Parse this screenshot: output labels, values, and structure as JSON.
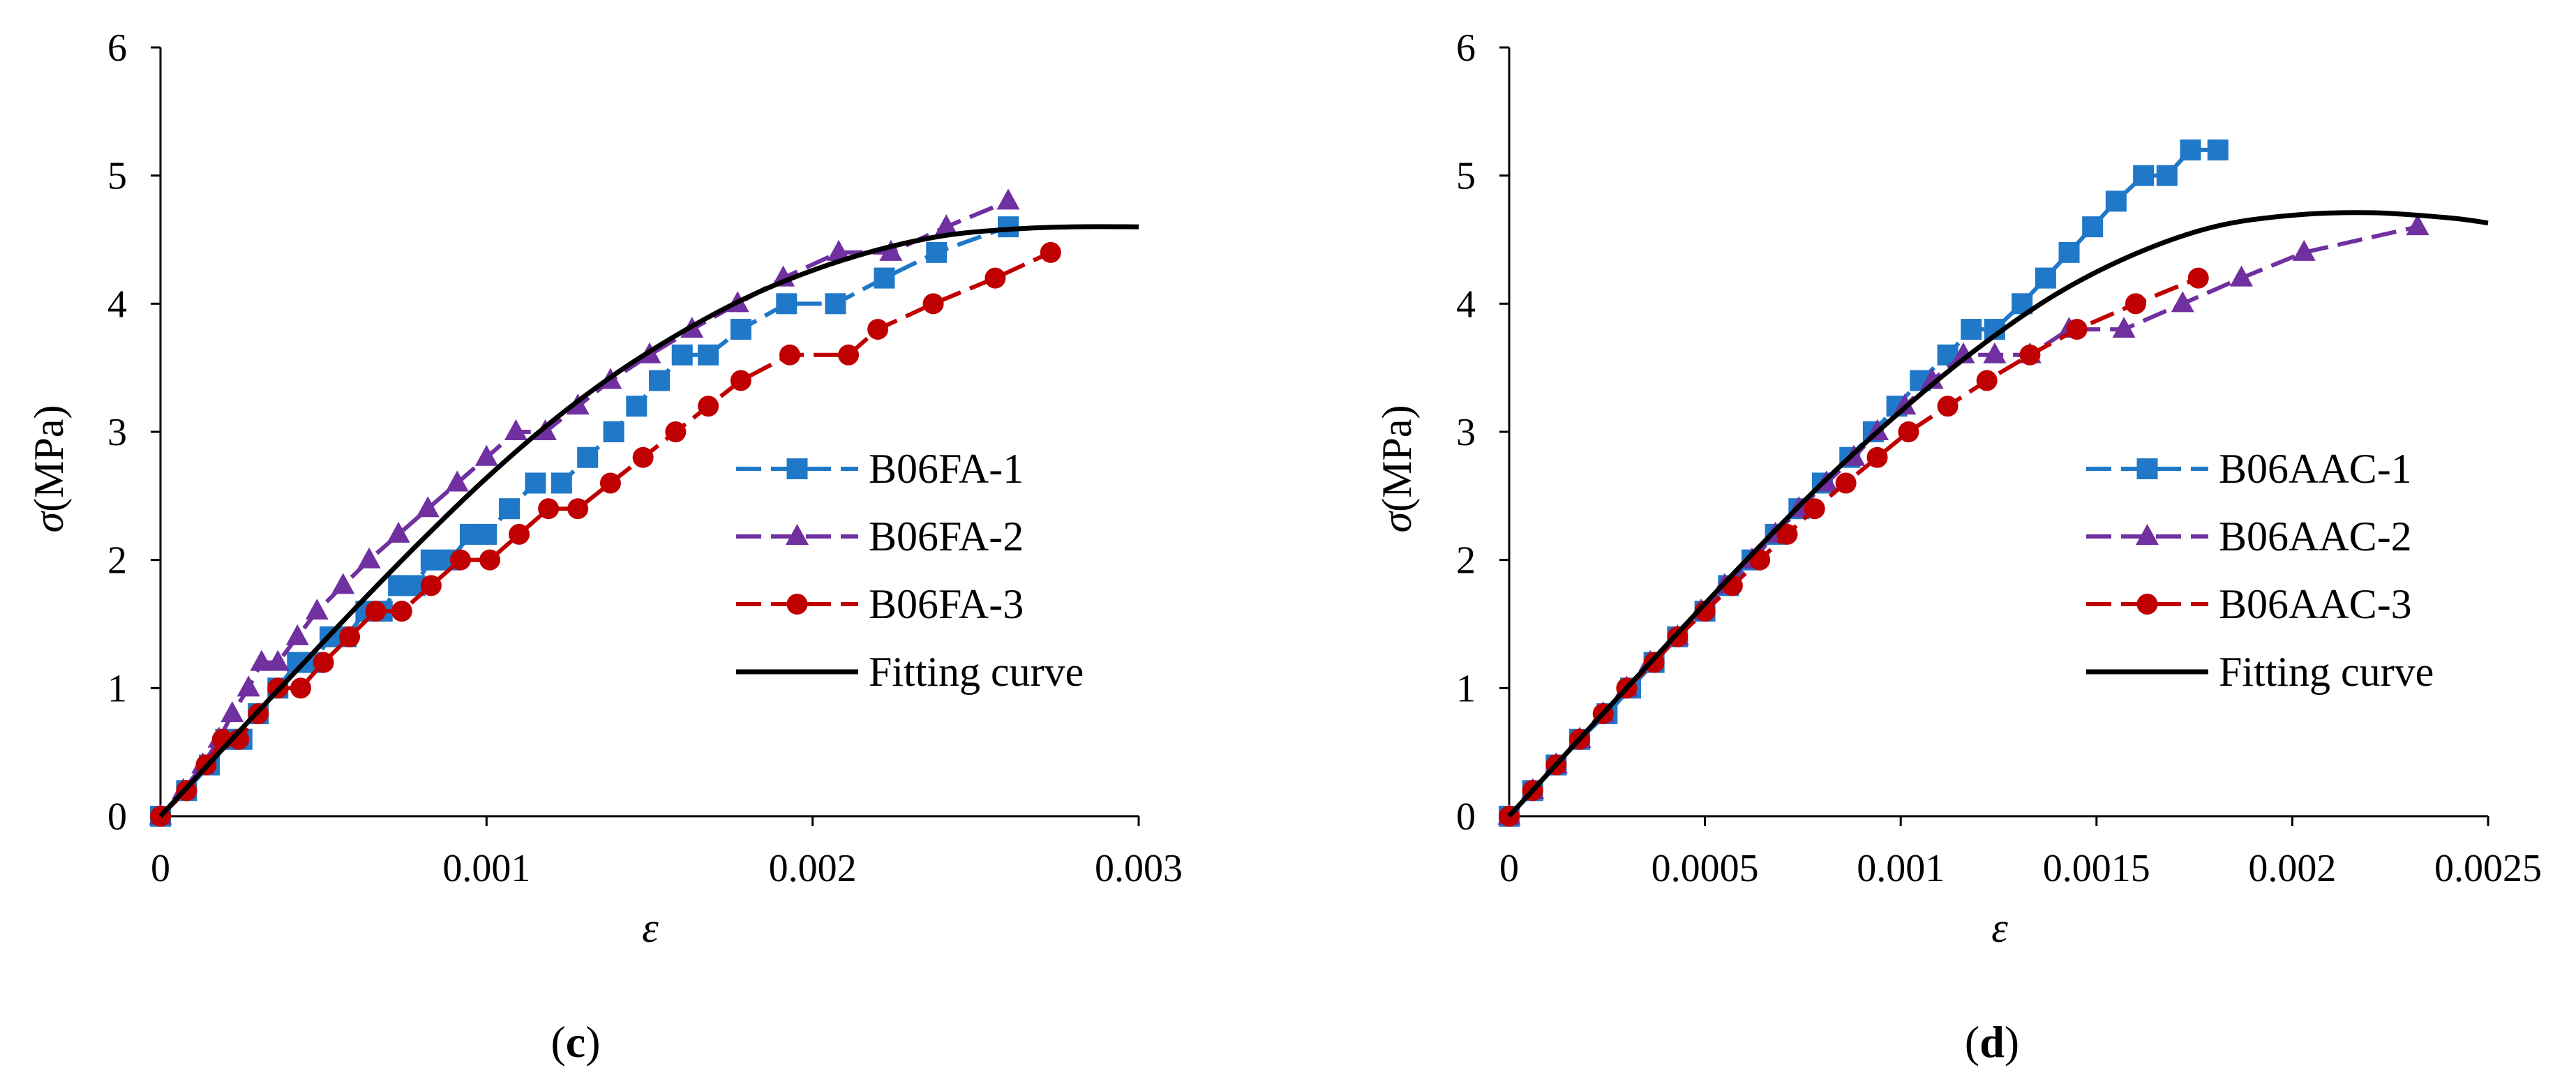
{
  "chart_data": [
    {
      "type": "line",
      "panel_label": "c",
      "xlabel": "ε",
      "ylabel_symbol": "σ",
      "ylabel_unit": "(MPa)",
      "xlim": [
        0,
        0.003
      ],
      "ylim": [
        0,
        6
      ],
      "x_ticks": [
        0,
        0.001,
        0.002,
        0.003
      ],
      "x_tick_labels": [
        "0",
        "0.001",
        "0.002",
        "0.003"
      ],
      "y_ticks": [
        0,
        1,
        2,
        3,
        4,
        5,
        6
      ],
      "y_tick_labels": [
        "0",
        "1",
        "2",
        "3",
        "4",
        "5",
        "6"
      ],
      "legend_position": "right-center",
      "series": [
        {
          "name": "B06FA-1",
          "color": "#1f78c8",
          "marker": "square",
          "dash": "dashed",
          "x": [
            0,
            8e-05,
            0.00015,
            0.0002,
            0.00025,
            0.0003,
            0.00036,
            0.00042,
            0.00047,
            0.00052,
            0.00057,
            0.00063,
            0.00068,
            0.00073,
            0.00078,
            0.00083,
            0.00089,
            0.00095,
            0.001,
            0.00107,
            0.00115,
            0.00123,
            0.00131,
            0.00139,
            0.00146,
            0.00153,
            0.0016,
            0.00168,
            0.00178,
            0.00192,
            0.00207,
            0.00222,
            0.00238,
            0.0026
          ],
          "y": [
            0,
            0.2,
            0.4,
            0.6,
            0.6,
            0.8,
            1.0,
            1.2,
            1.2,
            1.4,
            1.4,
            1.6,
            1.6,
            1.8,
            1.8,
            2.0,
            2.0,
            2.2,
            2.2,
            2.4,
            2.6,
            2.6,
            2.8,
            3.0,
            3.2,
            3.4,
            3.6,
            3.6,
            3.8,
            4.0,
            4.0,
            4.2,
            4.4,
            4.6
          ]
        },
        {
          "name": "B06FA-2",
          "color": "#7030a0",
          "marker": "triangle",
          "dash": "dashed",
          "x": [
            0,
            7e-05,
            0.00013,
            0.00018,
            0.00022,
            0.00027,
            0.00031,
            0.00036,
            0.00042,
            0.00048,
            0.00056,
            0.00064,
            0.00073,
            0.00082,
            0.00091,
            0.001,
            0.00109,
            0.00118,
            0.00128,
            0.00138,
            0.0015,
            0.00163,
            0.00177,
            0.00191,
            0.00208,
            0.00224,
            0.00241,
            0.0026
          ],
          "y": [
            0,
            0.2,
            0.4,
            0.6,
            0.8,
            1.0,
            1.2,
            1.2,
            1.4,
            1.6,
            1.8,
            2.0,
            2.2,
            2.4,
            2.6,
            2.8,
            3.0,
            3.0,
            3.2,
            3.4,
            3.6,
            3.8,
            4.0,
            4.2,
            4.4,
            4.4,
            4.6,
            4.8
          ]
        },
        {
          "name": "B06FA-3",
          "color": "#c00000",
          "marker": "circle",
          "dash": "dashed",
          "x": [
            0,
            8e-05,
            0.00014,
            0.00019,
            0.00024,
            0.0003,
            0.00036,
            0.00043,
            0.0005,
            0.00058,
            0.00066,
            0.00074,
            0.00083,
            0.00092,
            0.00101,
            0.0011,
            0.00119,
            0.00128,
            0.00138,
            0.00148,
            0.00158,
            0.00168,
            0.00178,
            0.00193,
            0.00211,
            0.0022,
            0.00237,
            0.00256,
            0.00273
          ],
          "y": [
            0,
            0.2,
            0.4,
            0.6,
            0.6,
            0.8,
            1.0,
            1.0,
            1.2,
            1.4,
            1.6,
            1.6,
            1.8,
            2.0,
            2.0,
            2.2,
            2.4,
            2.4,
            2.6,
            2.8,
            3.0,
            3.2,
            3.4,
            3.6,
            3.6,
            3.8,
            4.0,
            4.2,
            4.4
          ]
        },
        {
          "name": "Fitting curve",
          "color": "#000000",
          "marker": "none",
          "dash": "solid",
          "x": [
            0,
            0.0002,
            0.0004,
            0.0006,
            0.0008,
            0.001,
            0.0012,
            0.0014,
            0.0016,
            0.0018,
            0.002,
            0.0022,
            0.0024,
            0.0026,
            0.0028,
            0.003
          ],
          "y": [
            0,
            0.55,
            1.09,
            1.63,
            2.15,
            2.64,
            3.08,
            3.46,
            3.78,
            4.05,
            4.26,
            4.42,
            4.53,
            4.58,
            4.6,
            4.6
          ]
        }
      ]
    },
    {
      "type": "line",
      "panel_label": "d",
      "xlabel": "ε",
      "ylabel_symbol": "σ",
      "ylabel_unit": "(MPa)",
      "xlim": [
        0,
        0.0025
      ],
      "ylim": [
        0,
        6
      ],
      "x_ticks": [
        0,
        0.0005,
        0.001,
        0.0015,
        0.002,
        0.0025
      ],
      "x_tick_labels": [
        "0",
        "0.0005",
        "0.001",
        "0.0015",
        "0.002",
        "0.0025"
      ],
      "y_ticks": [
        0,
        1,
        2,
        3,
        4,
        5,
        6
      ],
      "y_tick_labels": [
        "0",
        "1",
        "2",
        "3",
        "4",
        "5",
        "6"
      ],
      "legend_position": "right-center",
      "series": [
        {
          "name": "B06AAC-1",
          "color": "#1f78c8",
          "marker": "square",
          "dash": "dashed",
          "x": [
            0,
            6e-05,
            0.00012,
            0.00018,
            0.00025,
            0.00031,
            0.00037,
            0.00043,
            0.0005,
            0.00056,
            0.00062,
            0.00068,
            0.00074,
            0.0008,
            0.00087,
            0.00093,
            0.00099,
            0.00105,
            0.00112,
            0.00118,
            0.00124,
            0.00131,
            0.00137,
            0.00143,
            0.00149,
            0.00155,
            0.00162,
            0.00168,
            0.00174,
            0.00181
          ],
          "y": [
            0,
            0.2,
            0.4,
            0.6,
            0.8,
            1.0,
            1.2,
            1.4,
            1.6,
            1.8,
            2.0,
            2.2,
            2.4,
            2.6,
            2.8,
            3.0,
            3.2,
            3.4,
            3.6,
            3.8,
            3.8,
            4.0,
            4.2,
            4.4,
            4.6,
            4.8,
            5.0,
            5.0,
            5.2,
            5.2
          ]
        },
        {
          "name": "B06AAC-2",
          "color": "#7030a0",
          "marker": "triangle",
          "dash": "dashed",
          "x": [
            0,
            6e-05,
            0.00012,
            0.00018,
            0.00024,
            0.0003,
            0.00036,
            0.00043,
            0.00049,
            0.00055,
            0.00062,
            0.00068,
            0.00074,
            0.00081,
            0.00088,
            0.00094,
            0.00101,
            0.00108,
            0.00116,
            0.00124,
            0.00133,
            0.00143,
            0.00157,
            0.00172,
            0.00187,
            0.00203,
            0.00232
          ],
          "y": [
            0,
            0.2,
            0.4,
            0.6,
            0.8,
            1.0,
            1.2,
            1.4,
            1.6,
            1.8,
            2.0,
            2.2,
            2.4,
            2.6,
            2.8,
            3.0,
            3.2,
            3.4,
            3.6,
            3.6,
            3.6,
            3.8,
            3.8,
            4.0,
            4.2,
            4.4,
            4.6
          ]
        },
        {
          "name": "B06AAC-3",
          "color": "#c00000",
          "marker": "circle",
          "dash": "dashed",
          "x": [
            0,
            6e-05,
            0.00012,
            0.00018,
            0.00024,
            0.0003,
            0.00037,
            0.00043,
            0.0005,
            0.00057,
            0.00064,
            0.00071,
            0.00078,
            0.00086,
            0.00094,
            0.00102,
            0.00112,
            0.00122,
            0.00133,
            0.00145,
            0.0016,
            0.00176
          ],
          "y": [
            0,
            0.2,
            0.4,
            0.6,
            0.8,
            1.0,
            1.2,
            1.4,
            1.6,
            1.8,
            2.0,
            2.2,
            2.4,
            2.6,
            2.8,
            3.0,
            3.2,
            3.4,
            3.6,
            3.8,
            4.0,
            4.2
          ]
        },
        {
          "name": "Fitting curve",
          "color": "#000000",
          "marker": "none",
          "dash": "solid",
          "x": [
            0,
            0.0002,
            0.0004,
            0.0006,
            0.0008,
            0.001,
            0.0012,
            0.0014,
            0.0016,
            0.0018,
            0.002,
            0.0022,
            0.0024,
            0.0025
          ],
          "y": [
            0,
            0.67,
            1.33,
            1.98,
            2.6,
            3.16,
            3.66,
            4.08,
            4.39,
            4.6,
            4.69,
            4.71,
            4.67,
            4.63
          ]
        }
      ]
    }
  ]
}
